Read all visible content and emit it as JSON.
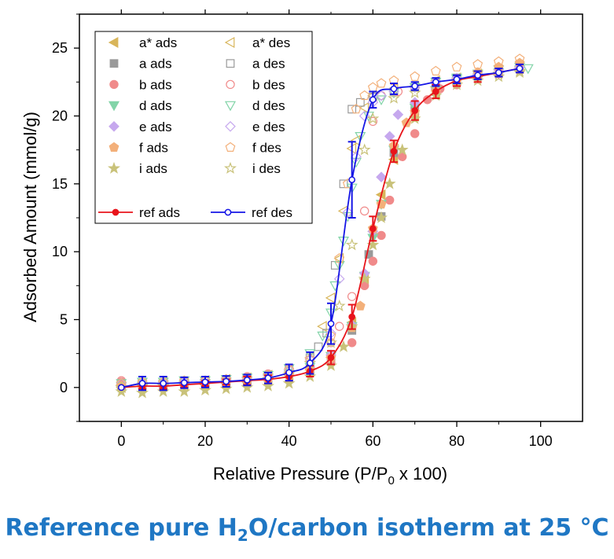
{
  "chart_data": {
    "type": "scatter",
    "xlabel": {
      "pre": "Relative Pressure (P/P",
      "sub": "0",
      "post": " x 100)"
    },
    "ylabel": "Adsorbed Amount (mmol/g)",
    "xlim": [
      -10,
      110
    ],
    "ylim": [
      -2.5,
      27.5
    ],
    "xticks": [
      0,
      20,
      40,
      60,
      80,
      100
    ],
    "xticks_minor": [
      10,
      30,
      50,
      70,
      90
    ],
    "yticks": [
      0,
      5,
      10,
      15,
      20,
      25
    ],
    "xtick_labels": [
      "0",
      "20",
      "40",
      "60",
      "80",
      "100"
    ],
    "ytick_labels": [
      "0",
      "5",
      "10",
      "15",
      "20",
      "25"
    ],
    "grid": false,
    "legend_position": "top-left",
    "series": [
      {
        "name": "a* ads",
        "marker": "triangle-left",
        "filled": true,
        "color": "#d8b55a",
        "x": [
          0,
          5,
          10,
          15,
          20,
          25,
          30,
          35,
          40,
          45,
          50,
          55,
          58,
          60,
          62,
          65,
          70,
          75,
          80,
          85,
          90,
          95
        ],
        "y": [
          0.0,
          0.1,
          0.1,
          0.2,
          0.2,
          0.3,
          0.4,
          0.6,
          0.9,
          1.3,
          2.2,
          4.8,
          8.0,
          11.5,
          14.2,
          16.8,
          20.0,
          21.6,
          22.6,
          23.1,
          23.4,
          23.6
        ]
      },
      {
        "name": "a* des",
        "marker": "triangle-left",
        "filled": false,
        "color": "#d8b55a",
        "x": [
          0,
          5,
          10,
          15,
          20,
          25,
          30,
          35,
          40,
          45,
          48,
          50,
          52,
          53,
          55,
          56,
          58,
          60,
          65,
          70,
          75,
          80,
          85,
          90,
          95
        ],
        "y": [
          0.2,
          0.3,
          0.4,
          0.4,
          0.5,
          0.6,
          0.7,
          0.9,
          1.3,
          2.2,
          4.5,
          6.6,
          9.5,
          13.0,
          17.6,
          18.2,
          20.6,
          21.5,
          22.0,
          22.2,
          22.6,
          22.8,
          23.0,
          23.2,
          23.5
        ]
      },
      {
        "name": "a ads",
        "marker": "square",
        "filled": true,
        "color": "#9a9a9a",
        "x": [
          0,
          5,
          10,
          15,
          20,
          25,
          30,
          35,
          40,
          45,
          50,
          55,
          59,
          62,
          65,
          70,
          75,
          80,
          85,
          90,
          95
        ],
        "y": [
          0.1,
          0.2,
          0.2,
          0.3,
          0.3,
          0.4,
          0.5,
          0.7,
          1.0,
          1.4,
          2.3,
          4.2,
          9.8,
          12.6,
          17.3,
          20.4,
          21.8,
          22.6,
          23.0,
          23.3,
          23.5
        ]
      },
      {
        "name": "a des",
        "marker": "square",
        "filled": false,
        "color": "#9a9a9a",
        "x": [
          0,
          5,
          10,
          15,
          20,
          25,
          30,
          35,
          40,
          45,
          47,
          49,
          51,
          53,
          55,
          57,
          60,
          65,
          70,
          75,
          80,
          85,
          90,
          95
        ],
        "y": [
          0.2,
          0.3,
          0.3,
          0.4,
          0.5,
          0.5,
          0.6,
          0.9,
          1.4,
          2.2,
          3.0,
          4.0,
          9.0,
          15.0,
          20.5,
          21.0,
          21.4,
          21.8,
          22.1,
          22.4,
          22.8,
          23.0,
          23.3,
          23.5
        ]
      },
      {
        "name": "b ads",
        "marker": "circle",
        "filled": true,
        "color": "#f08a8a",
        "x": [
          0,
          5,
          10,
          15,
          20,
          25,
          30,
          35,
          40,
          45,
          50,
          55,
          58,
          60,
          62,
          64,
          67,
          70,
          73,
          76,
          80,
          85,
          90,
          95
        ],
        "y": [
          0.4,
          0.1,
          0.2,
          0.2,
          0.3,
          0.4,
          0.5,
          0.6,
          0.9,
          1.4,
          1.8,
          3.3,
          7.5,
          9.3,
          11.2,
          13.8,
          17.0,
          18.7,
          21.2,
          22.0,
          22.3,
          22.8,
          23.1,
          23.4
        ]
      },
      {
        "name": "b des",
        "marker": "circle",
        "filled": false,
        "color": "#f08a8a",
        "x": [
          0,
          5,
          10,
          15,
          20,
          25,
          30,
          35,
          40,
          45,
          50,
          52,
          55,
          58,
          60,
          62,
          66,
          70,
          75,
          80,
          85,
          90,
          95
        ],
        "y": [
          0.5,
          0.4,
          0.4,
          0.5,
          0.5,
          0.6,
          0.8,
          1.0,
          1.4,
          2.0,
          3.3,
          4.5,
          6.7,
          13.0,
          19.6,
          21.5,
          21.8,
          22.1,
          22.5,
          22.8,
          23.0,
          23.3,
          23.5
        ]
      },
      {
        "name": "d ads",
        "marker": "triangle-down",
        "filled": true,
        "color": "#82d4a8",
        "x": [
          0,
          5,
          10,
          15,
          20,
          25,
          30,
          35,
          40,
          45,
          50,
          55,
          58,
          60,
          62,
          65,
          70,
          75,
          80,
          85,
          90,
          95
        ],
        "y": [
          0.1,
          0.1,
          0.2,
          0.2,
          0.3,
          0.4,
          0.5,
          0.7,
          1.0,
          1.5,
          2.3,
          4.5,
          8.2,
          11.0,
          13.5,
          17.5,
          20.6,
          21.9,
          22.7,
          23.1,
          23.4,
          23.6
        ]
      },
      {
        "name": "d des",
        "marker": "triangle-down",
        "filled": false,
        "color": "#82d4a8",
        "x": [
          0,
          5,
          10,
          15,
          20,
          25,
          30,
          35,
          40,
          45,
          48,
          50,
          51,
          52,
          53,
          54,
          55,
          56,
          57,
          59,
          62,
          65,
          70,
          75,
          80,
          85,
          90,
          95,
          97
        ],
        "y": [
          0.3,
          0.4,
          0.4,
          0.5,
          0.5,
          0.6,
          0.7,
          0.9,
          1.4,
          2.5,
          3.8,
          5.5,
          7.5,
          9.0,
          10.8,
          12.6,
          14.7,
          16.6,
          18.5,
          20.0,
          21.2,
          21.7,
          22.1,
          22.5,
          22.8,
          23.0,
          23.2,
          23.4,
          23.5
        ]
      },
      {
        "name": "e ads",
        "marker": "diamond",
        "filled": true,
        "color": "#c6a8ee",
        "x": [
          0,
          5,
          10,
          15,
          20,
          25,
          30,
          35,
          40,
          45,
          50,
          55,
          58,
          60,
          62,
          64,
          66,
          70,
          75,
          80,
          85,
          90,
          95
        ],
        "y": [
          0.1,
          0.1,
          0.2,
          0.3,
          0.3,
          0.4,
          0.5,
          0.7,
          1.0,
          1.5,
          2.4,
          4.6,
          8.4,
          11.5,
          15.5,
          18.5,
          20.1,
          21.0,
          22.0,
          22.7,
          23.1,
          23.4,
          23.6
        ]
      },
      {
        "name": "e des",
        "marker": "diamond",
        "filled": false,
        "color": "#c6a8ee",
        "x": [
          0,
          5,
          10,
          15,
          20,
          25,
          30,
          35,
          40,
          45,
          50,
          52,
          54,
          56,
          58,
          60,
          62,
          65,
          70,
          75,
          80,
          85,
          90,
          95
        ],
        "y": [
          0.3,
          0.3,
          0.4,
          0.4,
          0.5,
          0.6,
          0.7,
          0.9,
          1.3,
          2.1,
          4.0,
          8.0,
          12.9,
          17.0,
          20.0,
          21.0,
          21.5,
          21.8,
          22.1,
          22.5,
          22.8,
          23.0,
          23.2,
          23.4
        ]
      },
      {
        "name": "f ads",
        "marker": "pentagon",
        "filled": true,
        "color": "#f3b07a",
        "x": [
          0,
          5,
          10,
          15,
          20,
          25,
          30,
          35,
          40,
          45,
          50,
          55,
          57,
          60,
          62,
          65,
          68,
          70,
          75,
          80,
          85,
          90,
          95
        ],
        "y": [
          0.1,
          0.1,
          0.2,
          0.2,
          0.3,
          0.4,
          0.5,
          0.6,
          0.9,
          1.3,
          2.2,
          4.4,
          6.0,
          11.7,
          13.5,
          17.8,
          19.5,
          20.3,
          21.8,
          22.6,
          23.2,
          23.6,
          23.9
        ]
      },
      {
        "name": "f des",
        "marker": "pentagon",
        "filled": false,
        "color": "#f3b07a",
        "x": [
          0,
          5,
          10,
          15,
          20,
          25,
          30,
          35,
          40,
          45,
          50,
          52,
          54,
          56,
          58,
          60,
          62,
          65,
          70,
          75,
          80,
          85,
          90,
          95
        ],
        "y": [
          0.3,
          0.4,
          0.4,
          0.5,
          0.5,
          0.6,
          0.7,
          0.9,
          1.3,
          2.1,
          3.8,
          9.5,
          15.0,
          20.5,
          21.5,
          22.1,
          22.4,
          22.6,
          22.9,
          23.3,
          23.6,
          23.8,
          24.0,
          24.2
        ]
      },
      {
        "name": "i ads",
        "marker": "star",
        "filled": true,
        "color": "#c9c27a",
        "x": [
          0,
          5,
          10,
          15,
          20,
          25,
          30,
          35,
          40,
          45,
          50,
          53,
          55,
          58,
          60,
          62,
          64,
          67,
          70,
          75,
          80,
          85,
          90,
          95
        ],
        "y": [
          -0.3,
          -0.4,
          -0.3,
          -0.3,
          -0.2,
          -0.1,
          0.0,
          0.1,
          0.3,
          0.8,
          1.6,
          3.0,
          4.5,
          8.0,
          10.5,
          12.5,
          15.0,
          17.5,
          19.8,
          21.5,
          22.3,
          22.8,
          23.1,
          23.3
        ]
      },
      {
        "name": "i des",
        "marker": "star",
        "filled": false,
        "color": "#c9c27a",
        "x": [
          0,
          5,
          10,
          15,
          20,
          25,
          30,
          35,
          40,
          45,
          50,
          52,
          55,
          58,
          60,
          65,
          70,
          75,
          80,
          85,
          90,
          95
        ],
        "y": [
          0.0,
          0.1,
          0.1,
          0.2,
          0.2,
          0.3,
          0.4,
          0.6,
          1.0,
          1.8,
          3.3,
          6.0,
          10.5,
          17.5,
          19.8,
          21.3,
          21.7,
          22.0,
          22.3,
          22.6,
          22.9,
          23.2
        ]
      },
      {
        "name": "ref ads",
        "marker": "circle",
        "filled": true,
        "color": "#e8141b",
        "line": true,
        "x": [
          0,
          5,
          10,
          15,
          20,
          25,
          30,
          35,
          40,
          45,
          50,
          55,
          60,
          65,
          70,
          75,
          80,
          85,
          90,
          95
        ],
        "y": [
          0.0,
          0.1,
          0.1,
          0.2,
          0.3,
          0.4,
          0.5,
          0.6,
          0.8,
          1.2,
          2.2,
          5.2,
          11.7,
          17.4,
          20.4,
          21.8,
          22.6,
          22.9,
          23.2,
          23.5
        ],
        "err": [
          0.0,
          0.2,
          0.2,
          0.2,
          0.2,
          0.2,
          0.3,
          0.3,
          0.3,
          0.4,
          0.5,
          0.9,
          0.9,
          0.8,
          0.7,
          0.5,
          0.4,
          0.4,
          0.3,
          0.3
        ]
      },
      {
        "name": "ref des",
        "marker": "circle",
        "filled": false,
        "color": "#1515e6",
        "line": true,
        "x": [
          0,
          5,
          10,
          15,
          20,
          25,
          30,
          35,
          40,
          45,
          50,
          55,
          60,
          65,
          70,
          75,
          80,
          85,
          90,
          95
        ],
        "y": [
          0.0,
          0.3,
          0.3,
          0.35,
          0.4,
          0.45,
          0.55,
          0.7,
          1.1,
          1.8,
          4.7,
          15.3,
          21.2,
          22.0,
          22.2,
          22.5,
          22.7,
          23.0,
          23.2,
          23.5
        ],
        "err": [
          0.0,
          0.5,
          0.5,
          0.4,
          0.4,
          0.4,
          0.4,
          0.4,
          0.6,
          0.8,
          1.5,
          2.8,
          0.6,
          0.4,
          0.3,
          0.3,
          0.3,
          0.3,
          0.3,
          0.3
        ]
      }
    ]
  },
  "caption": {
    "pre": "Reference pure H",
    "sub": "2",
    "post": "O/carbon isotherm at 25 °C"
  }
}
